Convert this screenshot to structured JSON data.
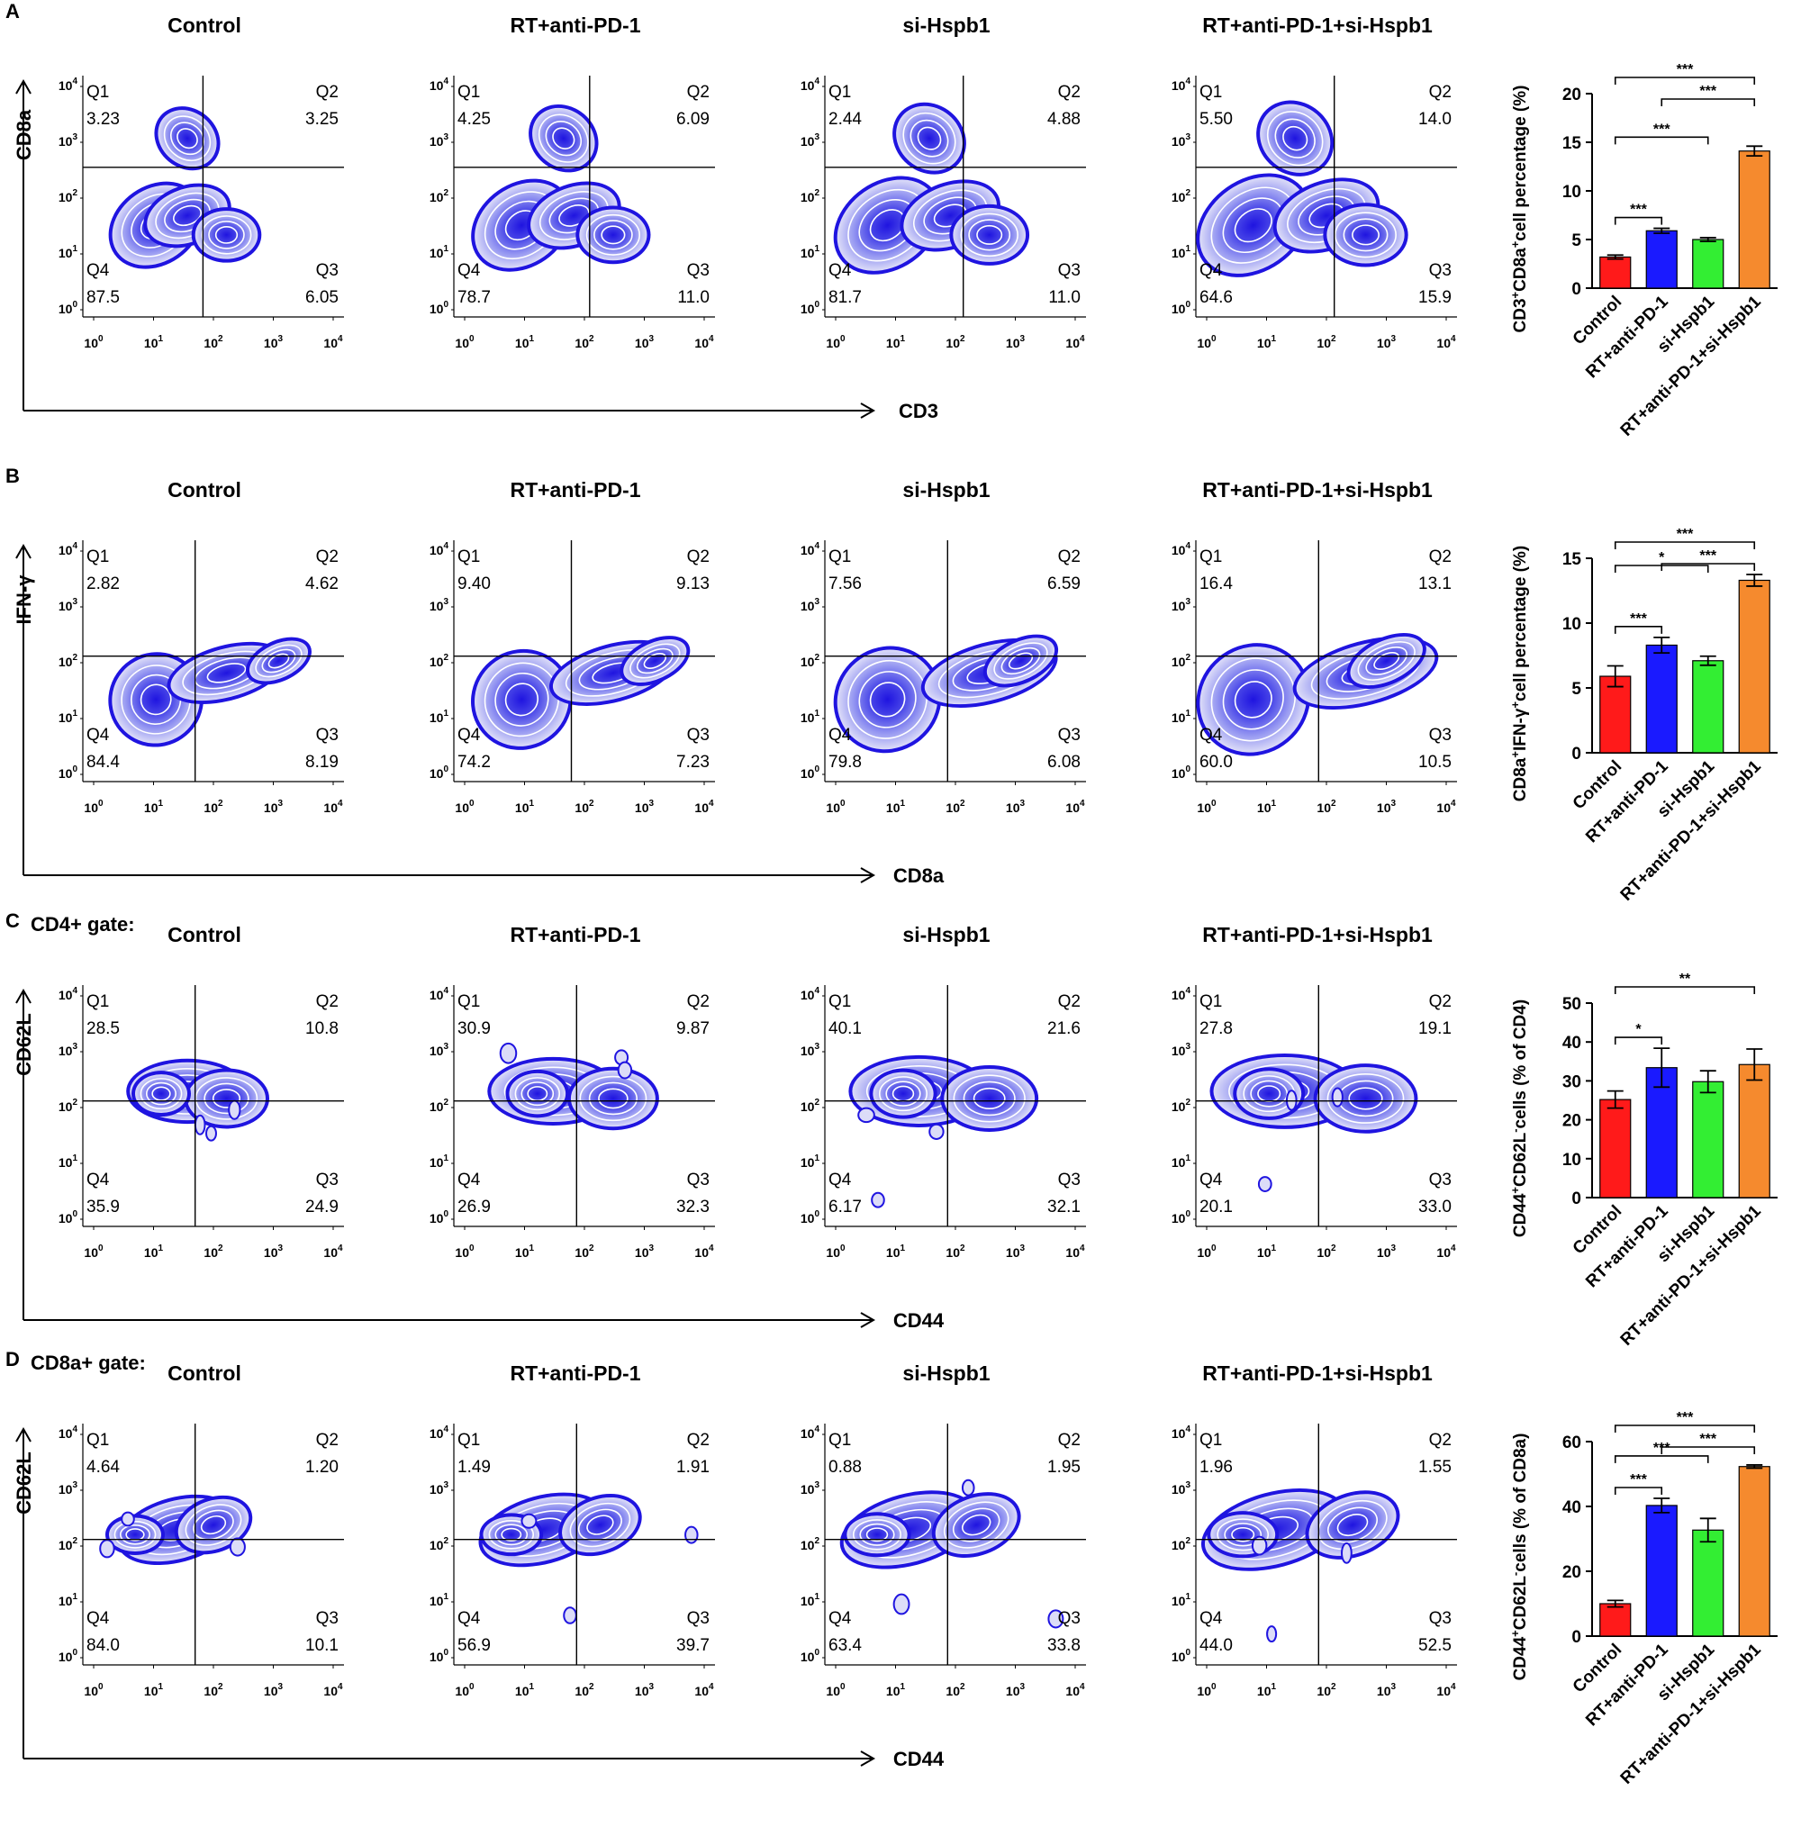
{
  "colors": {
    "density_dark": "#1f14e0",
    "density_mid": "#6a6ff0",
    "density_light": "#dcdcf8",
    "contour": "#ffffff",
    "bar_colors": [
      "#ff1a1a",
      "#1a1aff",
      "#33ee33",
      "#f58a2e"
    ]
  },
  "quadrant_labels": [
    "Q1",
    "Q2",
    "Q3",
    "Q4"
  ],
  "log_ticks": [
    "0",
    "1",
    "2",
    "3",
    "4"
  ],
  "log_tick_base": "10",
  "rows": [
    {
      "panel": "A",
      "gate_label": "",
      "x_axis": "CD3",
      "y_axis": "CD8a",
      "y_axis_sup": "",
      "columns": [
        {
          "title": "Control",
          "q1": "3.23",
          "q2": "3.25",
          "q3": "6.05",
          "q4": "87.5"
        },
        {
          "title": "RT+anti-PD-1",
          "q1": "4.25",
          "q2": "6.09",
          "q3": "11.0",
          "q4": "78.7"
        },
        {
          "title": "si-Hspb1",
          "q1": "2.44",
          "q2": "4.88",
          "q3": "11.0",
          "q4": "81.7"
        },
        {
          "title": "RT+anti-PD-1+si-Hspb1",
          "q1": "5.50",
          "q2": "14.0",
          "q3": "15.9",
          "q4": "64.6"
        }
      ]
    },
    {
      "panel": "B",
      "gate_label": "",
      "x_axis": "CD8a",
      "y_axis": "IFN-γ",
      "y_axis_sup": "",
      "columns": [
        {
          "title": "Control",
          "q1": "2.82",
          "q2": "4.62",
          "q3": "8.19",
          "q4": "84.4"
        },
        {
          "title": "RT+anti-PD-1",
          "q1": "9.40",
          "q2": "9.13",
          "q3": "7.23",
          "q4": "74.2"
        },
        {
          "title": "si-Hspb1",
          "q1": "7.56",
          "q2": "6.59",
          "q3": "6.08",
          "q4": "79.8"
        },
        {
          "title": "RT+anti-PD-1+si-Hspb1",
          "q1": "16.4",
          "q2": "13.1",
          "q3": "10.5",
          "q4": "60.0"
        }
      ]
    },
    {
      "panel": "C",
      "gate_label": "CD4+ gate:",
      "x_axis": "CD44",
      "y_axis": "CD62L",
      "y_axis_sup": "",
      "columns": [
        {
          "title": "Control",
          "q1": "28.5",
          "q2": "10.8",
          "q3": "24.9",
          "q4": "35.9"
        },
        {
          "title": "RT+anti-PD-1",
          "q1": "30.9",
          "q2": "9.87",
          "q3": "32.3",
          "q4": "26.9"
        },
        {
          "title": "si-Hspb1",
          "q1": "40.1",
          "q2": "21.6",
          "q3": "32.1",
          "q4": "6.17"
        },
        {
          "title": "RT+anti-PD-1+si-Hspb1",
          "q1": "27.8",
          "q2": "19.1",
          "q3": "33.0",
          "q4": "20.1"
        }
      ]
    },
    {
      "panel": "D",
      "gate_label": "CD8a+ gate:",
      "x_axis": "CD44",
      "y_axis": "CD62L",
      "y_axis_sup": "",
      "columns": [
        {
          "title": "Control",
          "q1": "4.64",
          "q2": "1.20",
          "q3": "10.1",
          "q4": "84.0"
        },
        {
          "title": "RT+anti-PD-1",
          "q1": "1.49",
          "q2": "1.91",
          "q3": "39.7",
          "q4": "56.9"
        },
        {
          "title": "si-Hspb1",
          "q1": "0.88",
          "q2": "1.95",
          "q3": "33.8",
          "q4": "63.4"
        },
        {
          "title": "RT+anti-PD-1+si-Hspb1",
          "q1": "1.96",
          "q2": "1.55",
          "q3": "52.5",
          "q4": "44.0"
        }
      ]
    }
  ],
  "chart_data": [
    {
      "type": "bar",
      "panel": "A",
      "categories": [
        "Control",
        "RT+anti-PD-1",
        "si-Hspb1",
        "RT+anti-PD-1+si-Hspb1"
      ],
      "values": [
        3.2,
        5.9,
        5.0,
        14.1
      ],
      "errors": [
        0.2,
        0.25,
        0.2,
        0.5
      ],
      "ylabel_parts": [
        "CD3",
        "+",
        "CD8a",
        "+",
        "cell percentage (%)"
      ],
      "ylim": [
        0,
        20
      ],
      "yticks": [
        0,
        5,
        10,
        15,
        20
      ],
      "significance": [
        {
          "from": 0,
          "to": 1,
          "label": "***"
        },
        {
          "from": 0,
          "to": 2,
          "label": "***"
        },
        {
          "from": 1,
          "to": 3,
          "label": "***"
        },
        {
          "from": 0,
          "to": 3,
          "label": "***"
        }
      ]
    },
    {
      "type": "bar",
      "panel": "B",
      "categories": [
        "Control",
        "RT+anti-PD-1",
        "si-Hspb1",
        "RT+anti-PD-1+si-Hspb1"
      ],
      "values": [
        5.9,
        8.3,
        7.1,
        13.3
      ],
      "errors": [
        0.8,
        0.6,
        0.35,
        0.45
      ],
      "ylabel_parts": [
        "CD8a",
        "+",
        "IFN-γ",
        "+",
        "cell percentage (%)"
      ],
      "ylim": [
        0,
        15
      ],
      "yticks": [
        0,
        5,
        10,
        15
      ],
      "significance": [
        {
          "from": 0,
          "to": 1,
          "label": "***"
        },
        {
          "from": 0,
          "to": 2,
          "label": "*"
        },
        {
          "from": 1,
          "to": 3,
          "label": "***"
        },
        {
          "from": 0,
          "to": 3,
          "label": "***"
        }
      ]
    },
    {
      "type": "bar",
      "panel": "C",
      "categories": [
        "Control",
        "RT+anti-PD-1",
        "si-Hspb1",
        "RT+anti-PD-1+si-Hspb1"
      ],
      "values": [
        25.2,
        33.4,
        29.8,
        34.2
      ],
      "errors": [
        2.2,
        5.0,
        2.8,
        4.0
      ],
      "ylabel_parts": [
        "CD44",
        "+",
        "CD62L",
        "-",
        "cells (% of CD4)"
      ],
      "ylim": [
        0,
        50
      ],
      "yticks": [
        0,
        10,
        20,
        30,
        40,
        50
      ],
      "significance": [
        {
          "from": 0,
          "to": 1,
          "label": "*"
        },
        {
          "from": 0,
          "to": 3,
          "label": "**"
        }
      ]
    },
    {
      "type": "bar",
      "panel": "D",
      "categories": [
        "Control",
        "RT+anti-PD-1",
        "si-Hspb1",
        "RT+anti-PD-1+si-Hspb1"
      ],
      "values": [
        10.0,
        40.3,
        32.7,
        52.3
      ],
      "errors": [
        1.0,
        2.2,
        3.6,
        0.5
      ],
      "ylabel_parts": [
        "CD44",
        "+",
        "CD62L",
        "-",
        "cells (% of CD8a)"
      ],
      "ylim": [
        0,
        60
      ],
      "yticks": [
        0,
        20,
        40,
        60
      ],
      "significance": [
        {
          "from": 0,
          "to": 1,
          "label": "***"
        },
        {
          "from": 0,
          "to": 2,
          "label": "***"
        },
        {
          "from": 1,
          "to": 3,
          "label": "***"
        },
        {
          "from": 0,
          "to": 3,
          "label": "***"
        }
      ]
    }
  ]
}
